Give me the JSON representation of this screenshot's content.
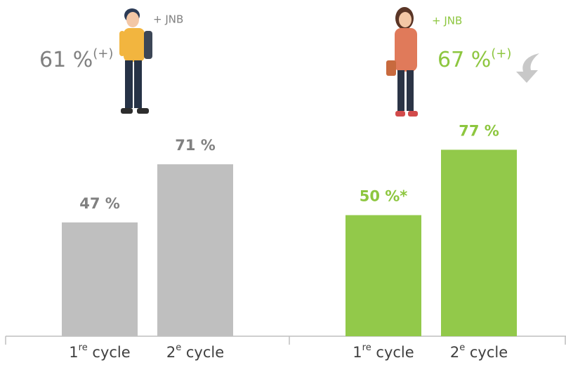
{
  "chart_data": [
    {
      "type": "bar",
      "headline": "61 %",
      "headline_note": "(+)",
      "tag": "+ JNB",
      "categories": [
        "1re cycle",
        "2e cycle"
      ],
      "values": [
        47,
        71
      ],
      "value_labels": [
        "47 %",
        "71 %"
      ],
      "color": "#bfbfbf",
      "text_color": "#808080"
    },
    {
      "type": "bar",
      "headline": "67 %",
      "headline_note": "(+)",
      "tag": "+ JNB",
      "categories": [
        "1re cycle",
        "2e cycle"
      ],
      "values": [
        50,
        77
      ],
      "value_labels": [
        "50 %*",
        "77 %"
      ],
      "color": "#92c94a",
      "text_color": "#8dc63f"
    }
  ]
}
